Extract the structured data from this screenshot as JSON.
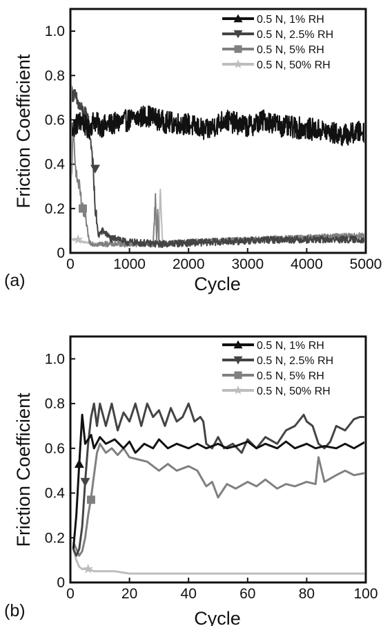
{
  "colors": {
    "series1": "#111111",
    "series2": "#444444",
    "series3": "#808080",
    "series4": "#bdbdbd"
  },
  "chart_data": [
    {
      "type": "line",
      "panel_label": "(a)",
      "xlabel": "Cycle",
      "ylabel": "Friction Coefficient",
      "xlim": [
        0,
        5000
      ],
      "ylim": [
        0,
        1.1
      ],
      "xticks": [
        0,
        1000,
        2000,
        3000,
        4000,
        5000
      ],
      "yticks": [
        0,
        0.2,
        0.4,
        0.6,
        0.8,
        1.0
      ],
      "ytick_labels": [
        "0",
        "0.2",
        "0.4",
        "0.6",
        "0.8",
        "1.0"
      ],
      "legend_position": "top-right",
      "series": [
        {
          "name": "0.5 N, 1% RH",
          "marker": "triangle-up",
          "x": [
            0,
            100,
            200,
            300,
            400,
            500,
            700,
            1000,
            1300,
            1600,
            2000,
            2300,
            2600,
            3000,
            3300,
            3600,
            4000,
            4300,
            4600,
            5000
          ],
          "values": [
            0.55,
            0.58,
            0.6,
            0.55,
            0.6,
            0.57,
            0.58,
            0.6,
            0.62,
            0.59,
            0.58,
            0.55,
            0.6,
            0.57,
            0.6,
            0.57,
            0.56,
            0.55,
            0.53,
            0.55
          ],
          "noise": 0.05
        },
        {
          "name": "0.5 N, 2.5% RH",
          "marker": "triangle-down",
          "x": [
            0,
            50,
            150,
            300,
            370,
            420,
            470,
            550,
            700,
            800,
            900,
            1500,
            2500,
            3500,
            4500,
            5000
          ],
          "values": [
            0.72,
            0.72,
            0.66,
            0.6,
            0.45,
            0.2,
            0.08,
            0.1,
            0.06,
            0.07,
            0.05,
            0.04,
            0.05,
            0.06,
            0.06,
            0.06
          ],
          "noise": 0.04
        },
        {
          "name": "0.5 N, 5% RH",
          "marker": "square",
          "x": [
            0,
            50,
            100,
            150,
            200,
            260,
            320,
            400,
            800,
            1400,
            1440,
            1460,
            1480,
            1500,
            2000,
            3000,
            4000,
            5000
          ],
          "values": [
            0.25,
            0.55,
            0.35,
            0.3,
            0.2,
            0.15,
            0.05,
            0.04,
            0.04,
            0.04,
            0.25,
            0.05,
            0.2,
            0.04,
            0.05,
            0.06,
            0.07,
            0.08
          ],
          "noise": 0.03
        },
        {
          "name": "0.5 N, 50% RH",
          "marker": "star",
          "x": [
            0,
            100,
            200,
            400,
            1000,
            1500,
            1520,
            1560,
            1600,
            2000,
            3000,
            4000,
            5000
          ],
          "values": [
            0.06,
            0.06,
            0.05,
            0.04,
            0.04,
            0.04,
            0.3,
            0.04,
            0.04,
            0.05,
            0.06,
            0.07,
            0.07
          ],
          "noise": 0.01
        }
      ],
      "marker_points": [
        [
          {
            "x": 120,
            "y": 0.6
          }
        ],
        [
          {
            "x": 420,
            "y": 0.38
          }
        ],
        [
          {
            "x": 210,
            "y": 0.2
          }
        ],
        [
          {
            "x": 130,
            "y": 0.06
          }
        ]
      ]
    },
    {
      "type": "line",
      "panel_label": "(b)",
      "xlabel": "Cycle",
      "ylabel": "Friction Coefficient",
      "xlim": [
        0,
        100
      ],
      "ylim": [
        0,
        1.1
      ],
      "xticks": [
        0,
        20,
        40,
        60,
        80,
        100
      ],
      "yticks": [
        0,
        0.2,
        0.4,
        0.6,
        0.8,
        1.0
      ],
      "ytick_labels": [
        "0",
        "0.2",
        "0.4",
        "0.6",
        "0.8",
        "1.0"
      ],
      "legend_position": "top-right",
      "series": [
        {
          "name": "0.5 N, 1% RH",
          "marker": "triangle-up",
          "x": [
            1,
            2,
            3,
            4,
            5,
            6,
            7,
            8,
            10,
            12,
            15,
            18,
            20,
            22,
            25,
            28,
            30,
            33,
            36,
            40,
            43,
            46,
            50,
            53,
            56,
            60,
            63,
            66,
            70,
            73,
            76,
            80,
            83,
            86,
            90,
            93,
            96,
            100
          ],
          "values": [
            0.15,
            0.3,
            0.53,
            0.75,
            0.62,
            0.64,
            0.66,
            0.6,
            0.65,
            0.62,
            0.64,
            0.6,
            0.63,
            0.58,
            0.62,
            0.6,
            0.64,
            0.6,
            0.62,
            0.6,
            0.62,
            0.6,
            0.62,
            0.6,
            0.61,
            0.63,
            0.6,
            0.62,
            0.6,
            0.63,
            0.6,
            0.62,
            0.6,
            0.61,
            0.6,
            0.62,
            0.6,
            0.63
          ]
        },
        {
          "name": "0.5 N, 2.5% RH",
          "marker": "triangle-down",
          "x": [
            1,
            2,
            3,
            4,
            5,
            6,
            7,
            8,
            9,
            10,
            12,
            14,
            16,
            18,
            20,
            22,
            24,
            26,
            28,
            30,
            32,
            34,
            36,
            38,
            40,
            42,
            44,
            45,
            46,
            48,
            50,
            52,
            55,
            58,
            60,
            63,
            66,
            70,
            73,
            76,
            79,
            80,
            82,
            84,
            86,
            88,
            90,
            93,
            96,
            98,
            100
          ],
          "values": [
            0.15,
            0.12,
            0.15,
            0.25,
            0.45,
            0.62,
            0.74,
            0.8,
            0.7,
            0.8,
            0.7,
            0.8,
            0.68,
            0.76,
            0.72,
            0.8,
            0.7,
            0.8,
            0.74,
            0.77,
            0.7,
            0.78,
            0.72,
            0.74,
            0.8,
            0.72,
            0.74,
            0.72,
            0.62,
            0.6,
            0.65,
            0.6,
            0.62,
            0.58,
            0.64,
            0.6,
            0.65,
            0.62,
            0.68,
            0.7,
            0.75,
            0.72,
            0.7,
            0.62,
            0.6,
            0.63,
            0.7,
            0.68,
            0.73,
            0.74,
            0.74
          ]
        },
        {
          "name": "0.5 N, 5% RH",
          "marker": "square",
          "x": [
            1,
            2,
            3,
            4,
            5,
            6,
            7,
            8,
            9,
            10,
            12,
            14,
            16,
            18,
            20,
            23,
            26,
            30,
            33,
            36,
            40,
            43,
            46,
            48,
            50,
            53,
            56,
            60,
            63,
            66,
            70,
            73,
            76,
            80,
            83,
            84,
            86,
            90,
            93,
            96,
            100
          ],
          "values": [
            0.18,
            0.15,
            0.12,
            0.14,
            0.2,
            0.3,
            0.38,
            0.48,
            0.58,
            0.62,
            0.58,
            0.6,
            0.57,
            0.6,
            0.56,
            0.55,
            0.54,
            0.5,
            0.53,
            0.5,
            0.52,
            0.5,
            0.43,
            0.45,
            0.38,
            0.44,
            0.42,
            0.45,
            0.43,
            0.46,
            0.42,
            0.44,
            0.43,
            0.45,
            0.44,
            0.56,
            0.45,
            0.48,
            0.5,
            0.48,
            0.49
          ]
        },
        {
          "name": "0.5 N, 50% RH",
          "marker": "star",
          "x": [
            1,
            2,
            3,
            4,
            5,
            6,
            8,
            10,
            15,
            20,
            30,
            40,
            50,
            60,
            70,
            80,
            90,
            100
          ],
          "values": [
            0.15,
            0.1,
            0.07,
            0.06,
            0.06,
            0.06,
            0.05,
            0.05,
            0.05,
            0.04,
            0.04,
            0.04,
            0.04,
            0.04,
            0.04,
            0.04,
            0.04,
            0.04
          ]
        }
      ],
      "marker_points": [
        [
          {
            "x": 3,
            "y": 0.53
          }
        ],
        [
          {
            "x": 5,
            "y": 0.45
          }
        ],
        [
          {
            "x": 7,
            "y": 0.37
          }
        ],
        [
          {
            "x": 6,
            "y": 0.06
          }
        ]
      ]
    }
  ]
}
